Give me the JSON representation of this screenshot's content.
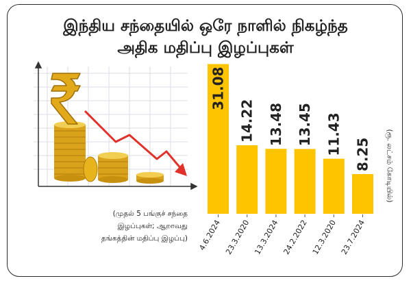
{
  "title": {
    "line1": "இந்திய சந்தையில் ஒரே நாளில் நிகழ்ந்த",
    "line2": "அதிக மதிப்பு இழப்புகள்"
  },
  "note": {
    "line1": "(முதல் 5 பங்குச் சந்தை",
    "line2": "இழப்புகள்; ஆறாவது",
    "line3": "தங்கத்தின் மதிப்பு இழப்பு)"
  },
  "unit_label": "(ரூ. லட்சம் கோடியில்)",
  "icons": {
    "rupee": "rupee-symbol-icon",
    "coins": "gold-coin-stacks-icon",
    "trend": "downward-trend-arrow-icon"
  },
  "colors": {
    "bar": "#FFC400",
    "arrow": "#E0312A",
    "coin": "#E8B41E",
    "grid": "#D9DEE4",
    "text": "#222222"
  },
  "chart_data": {
    "type": "bar",
    "categories": [
      "4.6.2024",
      "23.3.2020",
      "13.3.2024",
      "24.2.2022",
      "12.3.2020",
      "23.7.2024"
    ],
    "values": [
      31.08,
      14.22,
      13.48,
      13.45,
      11.43,
      8.25
    ],
    "ylabel": "(ரூ. லட்சம் கோடியில்)",
    "ylim": [
      0,
      32
    ],
    "grid": false
  }
}
